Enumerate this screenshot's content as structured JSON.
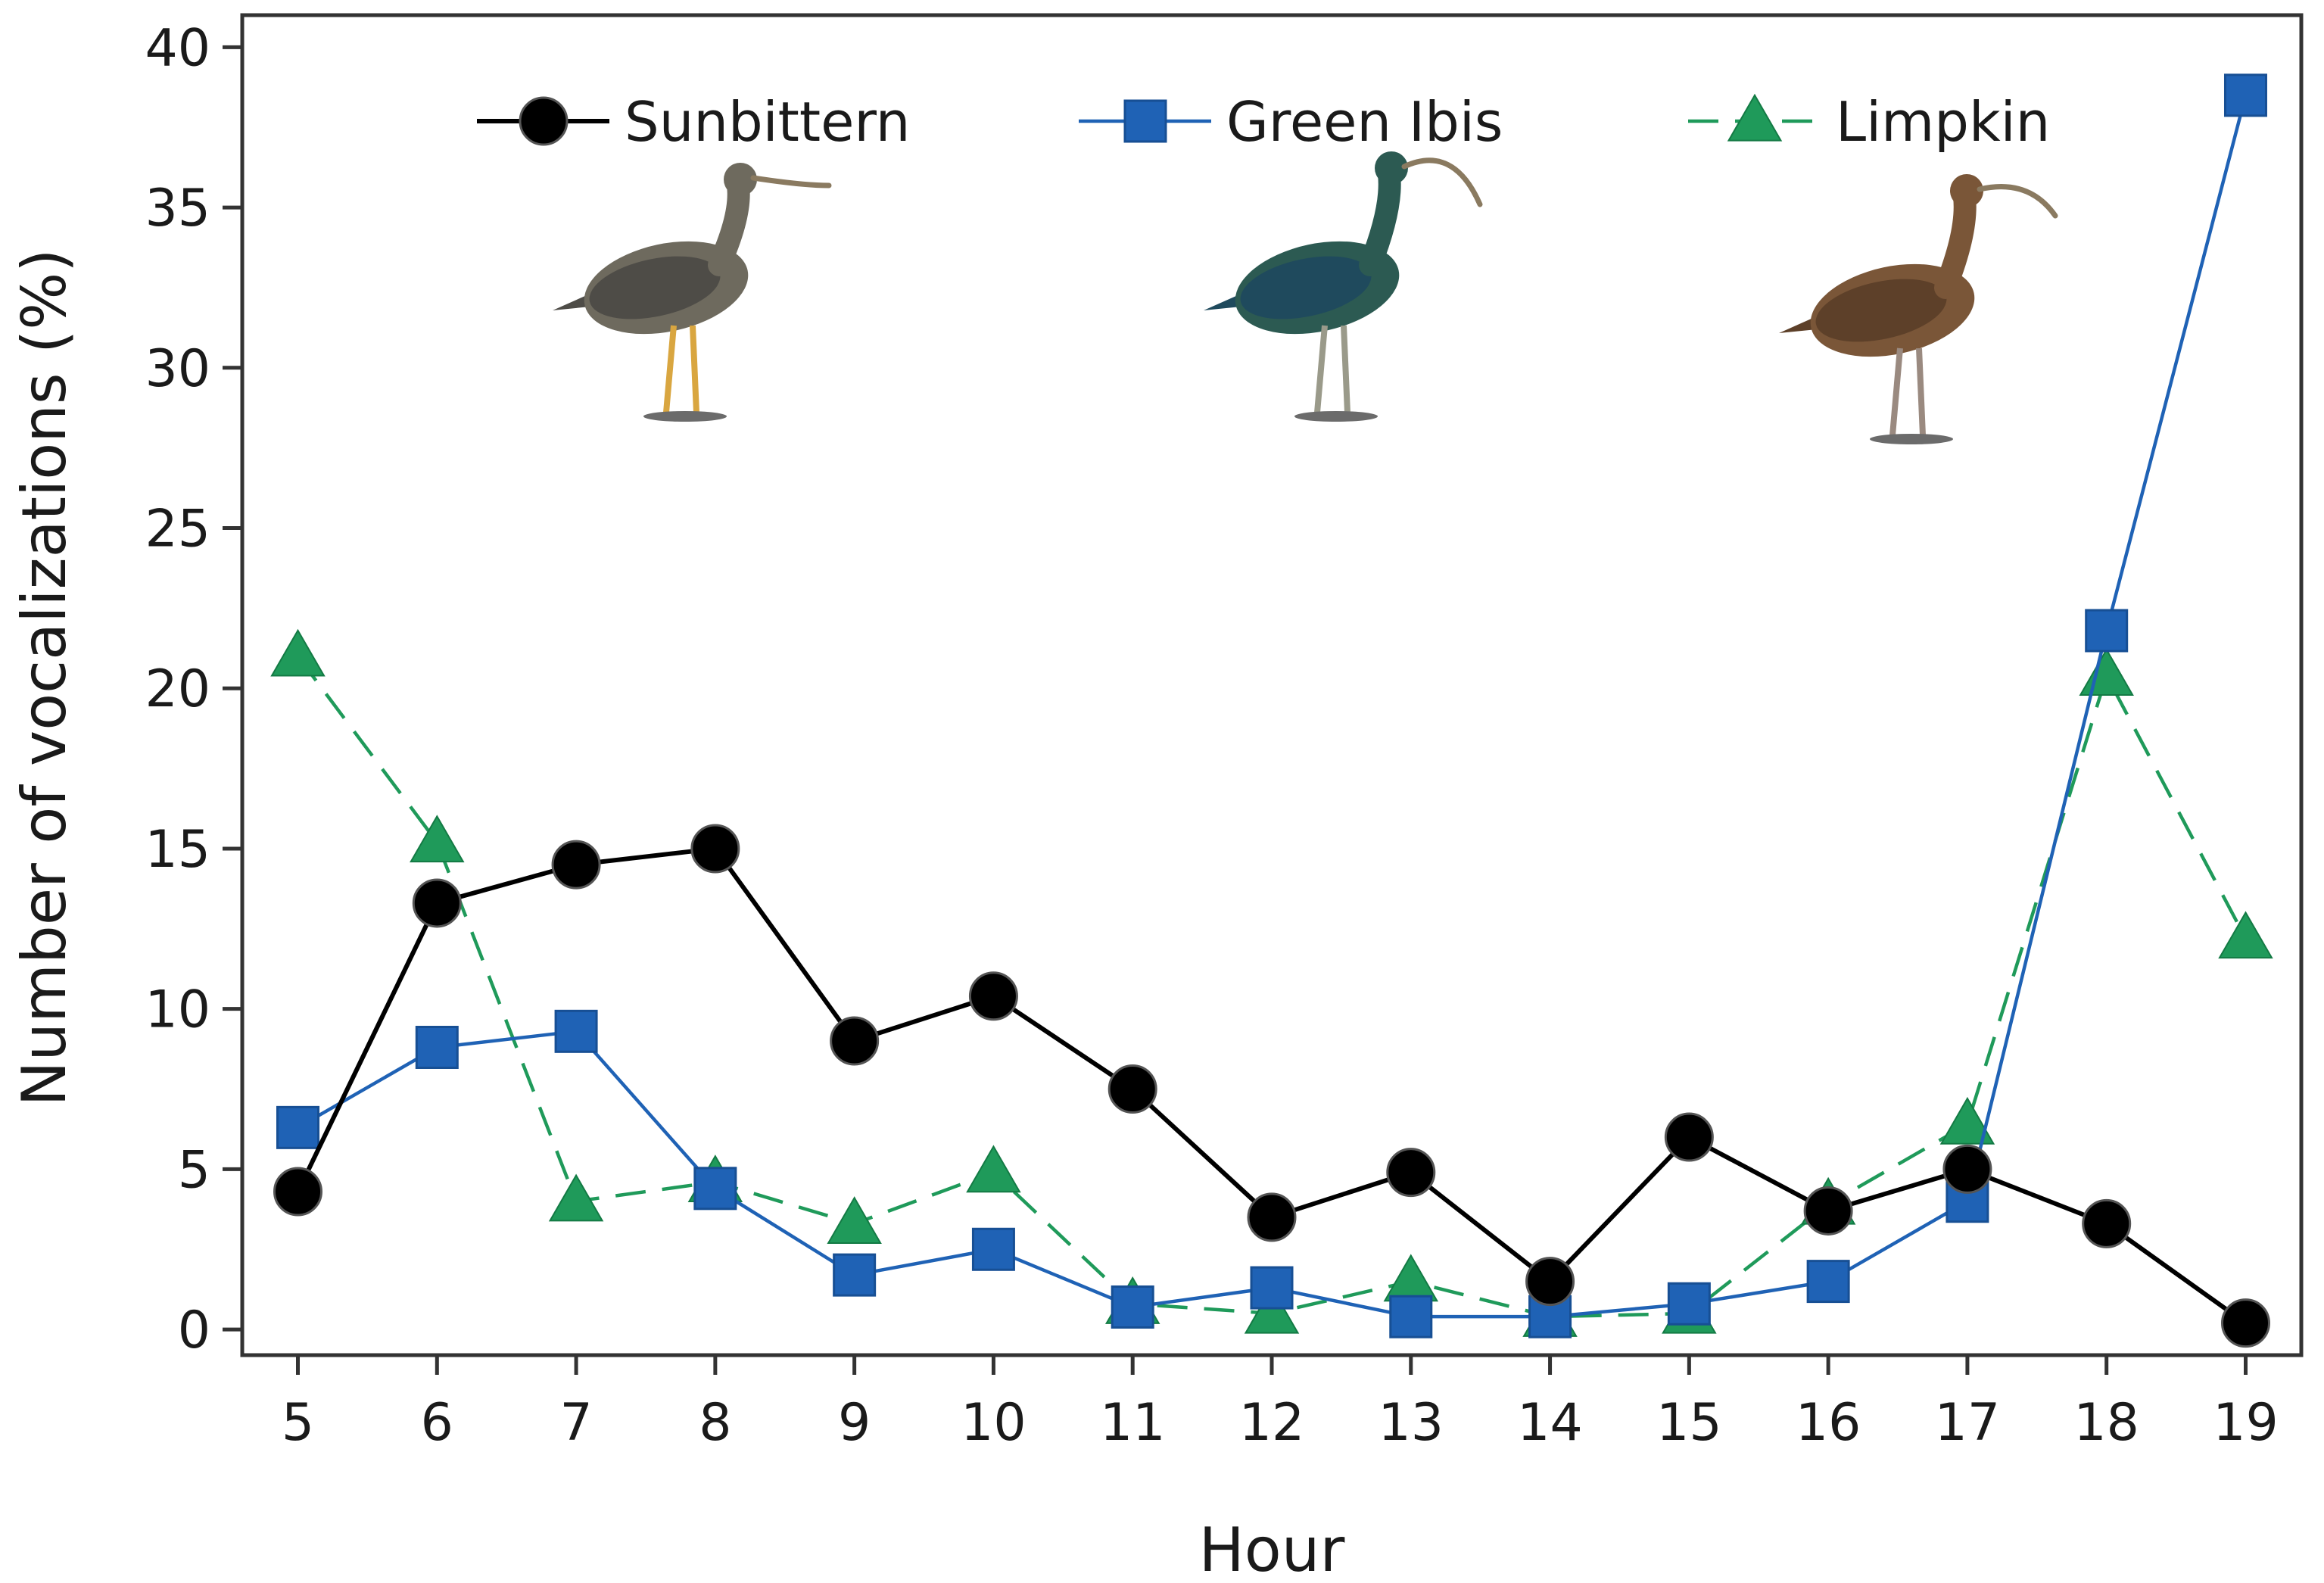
{
  "chart_data": {
    "type": "line",
    "title": "",
    "xlabel": "Hour",
    "ylabel": "Number of vocalizations (%)",
    "x": [
      5,
      6,
      7,
      8,
      9,
      10,
      11,
      12,
      13,
      14,
      15,
      16,
      17,
      18,
      19
    ],
    "xlim": [
      4.6,
      19.4
    ],
    "ylim": [
      -0.8,
      41
    ],
    "yticks": [
      0,
      5,
      10,
      15,
      20,
      25,
      30,
      35,
      40
    ],
    "grid": false,
    "legend_position": "top",
    "series": [
      {
        "name": "Sunbittern",
        "marker": "circle",
        "line_style": "solid",
        "color": "#000000",
        "values": [
          4.3,
          13.3,
          14.5,
          15.0,
          9.0,
          10.4,
          7.5,
          3.5,
          4.9,
          1.5,
          6.0,
          3.7,
          5.0,
          3.3,
          0.2
        ]
      },
      {
        "name": "Green Ibis",
        "marker": "square",
        "line_style": "solid",
        "color": "#1f62b5",
        "values": [
          6.3,
          8.8,
          9.3,
          4.4,
          1.7,
          2.5,
          0.7,
          1.3,
          0.4,
          0.4,
          0.8,
          1.5,
          4.0,
          21.8,
          38.5
        ]
      },
      {
        "name": "Limpkin",
        "marker": "triangle",
        "line_style": "dashed",
        "color": "#1f9a5a",
        "values": [
          21.0,
          15.2,
          4.0,
          4.6,
          3.3,
          4.9,
          0.8,
          0.5,
          1.5,
          0.4,
          0.5,
          3.9,
          6.4,
          20.4,
          12.2
        ]
      }
    ],
    "illustrations": [
      {
        "name": "sunbittern-illustration",
        "depicts": "Sunbittern"
      },
      {
        "name": "green-ibis-illustration",
        "depicts": "Green Ibis"
      },
      {
        "name": "limpkin-illustration",
        "depicts": "Limpkin"
      }
    ]
  }
}
